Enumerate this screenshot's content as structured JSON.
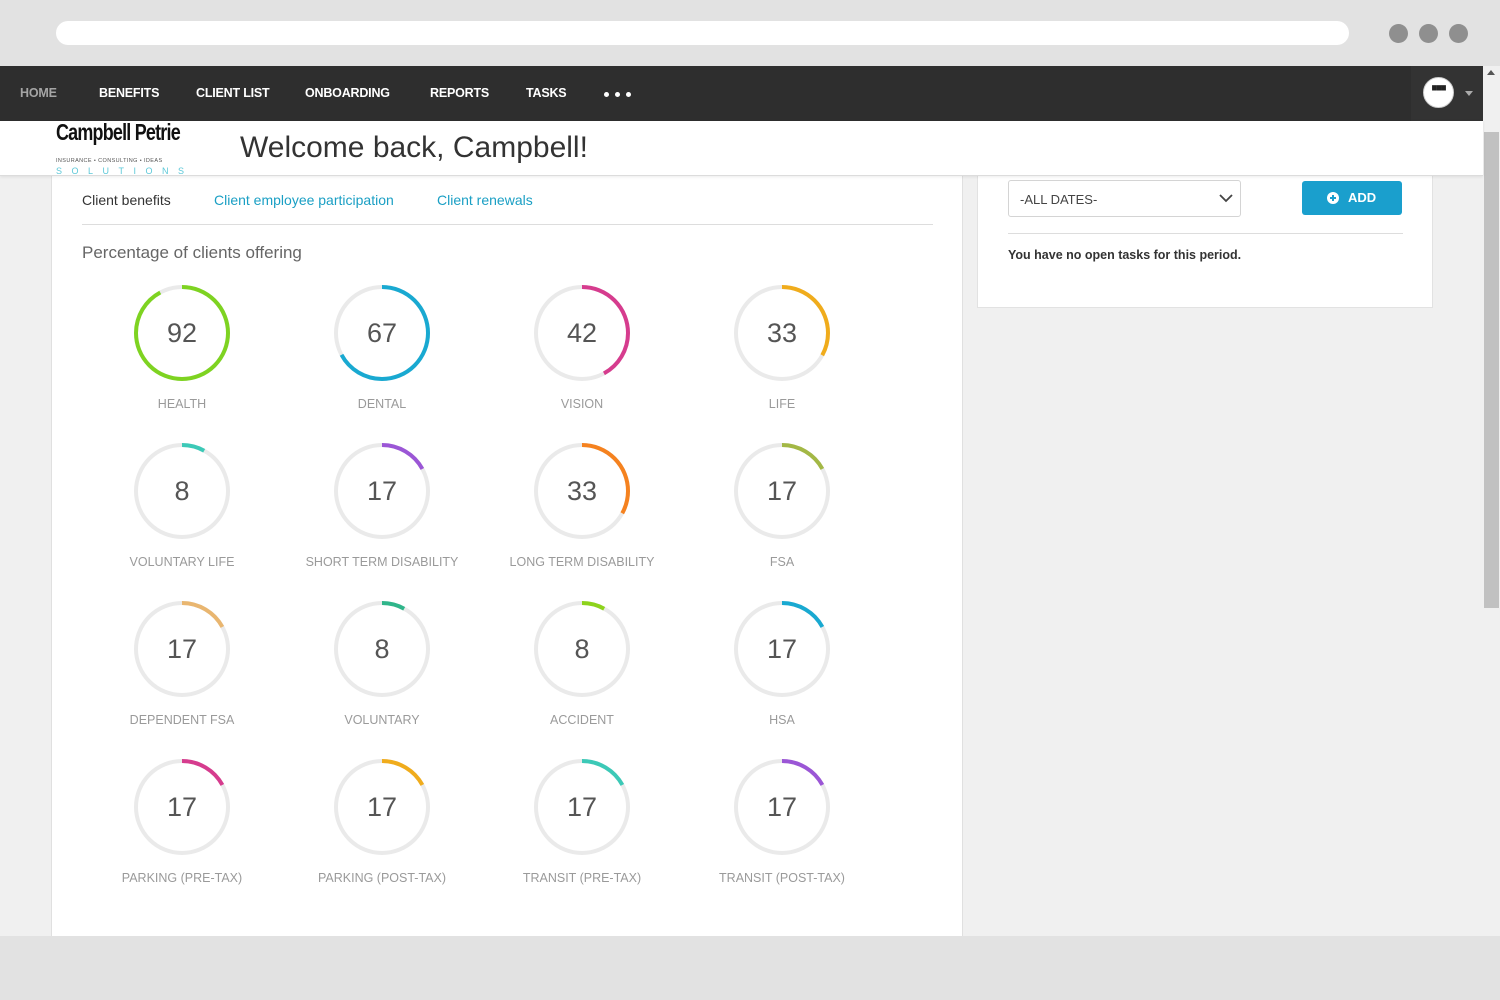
{
  "nav": {
    "items": [
      {
        "label": "HOME",
        "active": true
      },
      {
        "label": "BENEFITS",
        "active": false
      },
      {
        "label": "CLIENT LIST",
        "active": false
      },
      {
        "label": "ONBOARDING",
        "active": false
      },
      {
        "label": "REPORTS",
        "active": false
      },
      {
        "label": "TASKS",
        "active": false
      }
    ]
  },
  "logo": {
    "name": "Campbell Petrie",
    "tagline": "INSURANCE • CONSULTING • IDEAS",
    "solutions": "SOLUTIONS"
  },
  "header": {
    "welcome": "Welcome back, Campbell!"
  },
  "tabs": [
    {
      "label": "Client benefits",
      "active": true
    },
    {
      "label": "Client employee participation",
      "active": false
    },
    {
      "label": "Client renewals",
      "active": false
    }
  ],
  "section_title": "Percentage of clients offering",
  "benefits": [
    {
      "label": "HEALTH",
      "value": 92,
      "color": "#7ed321"
    },
    {
      "label": "DENTAL",
      "value": 67,
      "color": "#19a9d1"
    },
    {
      "label": "VISION",
      "value": 42,
      "color": "#d63c8e"
    },
    {
      "label": "LIFE",
      "value": 33,
      "color": "#f0ac1c"
    },
    {
      "label": "VOLUNTARY LIFE",
      "value": 8,
      "color": "#3cc9b7"
    },
    {
      "label": "SHORT TERM DISABILITY",
      "value": 17,
      "color": "#9b56d6"
    },
    {
      "label": "LONG TERM DISABILITY",
      "value": 33,
      "color": "#f5821f"
    },
    {
      "label": "FSA",
      "value": 17,
      "color": "#a3b845"
    },
    {
      "label": "DEPENDENT FSA",
      "value": 17,
      "color": "#e9b670"
    },
    {
      "label": "VOLUNTARY",
      "value": 8,
      "color": "#2fb58a"
    },
    {
      "label": "ACCIDENT",
      "value": 8,
      "color": "#8dd31c"
    },
    {
      "label": "HSA",
      "value": 17,
      "color": "#19a9d1"
    },
    {
      "label": "PARKING (PRE-TAX)",
      "value": 17,
      "color": "#d63c8e"
    },
    {
      "label": "PARKING (POST-TAX)",
      "value": 17,
      "color": "#f0ac1c"
    },
    {
      "label": "TRANSIT (PRE-TAX)",
      "value": 17,
      "color": "#3cc9b7"
    },
    {
      "label": "TRANSIT (POST-TAX)",
      "value": 17,
      "color": "#9b56d6"
    }
  ],
  "tasks": {
    "date_filter": "-ALL DATES-",
    "add_label": "ADD",
    "empty_message": "You have no open tasks for this period."
  },
  "colors": {
    "nav_bg": "#2e2e2e",
    "accent": "#1a9fcd",
    "gauge_track": "#eaeaea"
  }
}
